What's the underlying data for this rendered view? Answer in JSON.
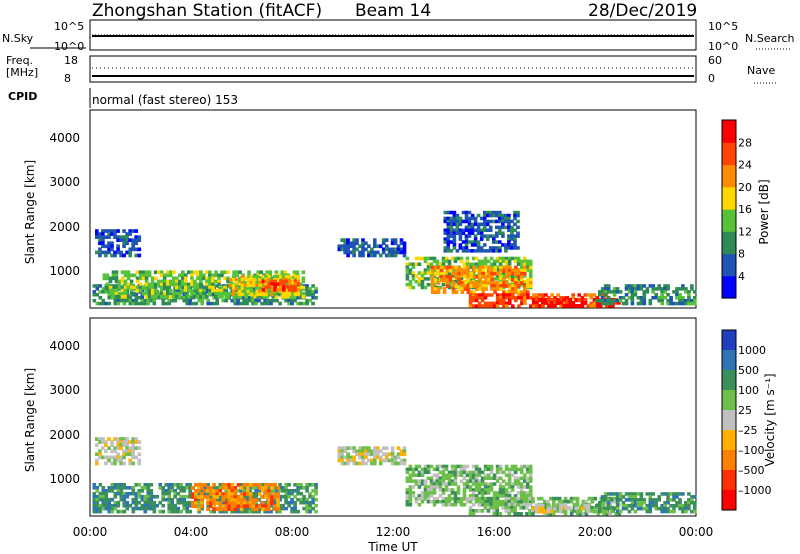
{
  "header": {
    "station": "Zhongshan Station (fitACF)",
    "beam": "Beam 14",
    "date": "28/Dec/2019"
  },
  "noise_panel": {
    "left_label": "N.Sky",
    "right_label": "N.Search",
    "left_ticks": [
      "10^5",
      "10^0"
    ],
    "right_ticks": [
      "10^5",
      "10^0"
    ]
  },
  "freq_panel": {
    "left_label_1": "Freq.",
    "left_label_2": "[MHz]",
    "left_ticks": [
      "18",
      "8"
    ],
    "right_label": "Nave",
    "right_ticks": [
      "60",
      "0"
    ]
  },
  "cpid_panel": {
    "label": "CPID",
    "mode_text": "normal (fast stereo) 153"
  },
  "chart_data": [
    {
      "type": "heatmap",
      "name": "power",
      "ylabel": "Slant Range [km]",
      "ylim": [
        180,
        4500
      ],
      "yticks": [
        "1000",
        "2000",
        "3000",
        "4000"
      ],
      "colorbar_label": "Power [dB]",
      "colorbar_ticks": [
        "4",
        "8",
        "12",
        "16",
        "20",
        "24",
        "28"
      ],
      "colors": [
        "#0000ff",
        "#1f55b4",
        "#2e8b57",
        "#55c23a",
        "#ffd700",
        "#ff8c00",
        "#ff4500",
        "#ff0000"
      ],
      "regions": [
        {
          "t0": 0.1,
          "t1": 9.0,
          "r0": 250,
          "r1": 700,
          "level": 2
        },
        {
          "t0": 0.5,
          "t1": 8.5,
          "r0": 400,
          "r1": 1000,
          "level": 3
        },
        {
          "t0": 5.5,
          "t1": 8.3,
          "r0": 450,
          "r1": 900,
          "level": 4
        },
        {
          "t0": 6.8,
          "t1": 8.3,
          "r0": 550,
          "r1": 800,
          "level": 6
        },
        {
          "t0": 0.2,
          "t1": 2.0,
          "r0": 1300,
          "r1": 1900,
          "level": 1
        },
        {
          "t0": 9.8,
          "t1": 12.5,
          "r0": 1300,
          "r1": 1700,
          "level": 1
        },
        {
          "t0": 12.5,
          "t1": 17.5,
          "r0": 600,
          "r1": 1300,
          "level": 3
        },
        {
          "t0": 13.5,
          "t1": 17.5,
          "r0": 500,
          "r1": 1100,
          "level": 5
        },
        {
          "t0": 15.0,
          "t1": 20.5,
          "r0": 200,
          "r1": 500,
          "level": 6
        },
        {
          "t0": 17.5,
          "t1": 21.0,
          "r0": 200,
          "r1": 400,
          "level": 7
        },
        {
          "t0": 20.0,
          "t1": 24.0,
          "r0": 250,
          "r1": 700,
          "level": 2
        },
        {
          "t0": 14.0,
          "t1": 17.0,
          "r0": 1400,
          "r1": 2300,
          "level": 1
        }
      ]
    },
    {
      "type": "heatmap",
      "name": "velocity",
      "ylabel": "Slant Range [km]",
      "ylim": [
        180,
        4500
      ],
      "yticks": [
        "1000",
        "2000",
        "3000",
        "4000"
      ],
      "xlabel": "Time UT",
      "xticks": [
        "00:00",
        "04:00",
        "08:00",
        "12:00",
        "16:00",
        "20:00",
        "00:00"
      ],
      "colorbar_label": "Velocity [m s⁻¹]",
      "colorbar_ticks": [
        "1000",
        "500",
        "100",
        "25",
        "–25",
        "–100",
        "–500",
        "–1000"
      ],
      "colors": [
        "#1f3fbf",
        "#2f74b5",
        "#3a8f5a",
        "#6cc04a",
        "#c0c0c0",
        "#ffb000",
        "#ff8000",
        "#ff3000",
        "#ff0000"
      ],
      "regions": [
        {
          "t0": 0.1,
          "t1": 9.0,
          "r0": 250,
          "r1": 900,
          "level": 2
        },
        {
          "t0": 4.0,
          "t1": 7.5,
          "r0": 300,
          "r1": 900,
          "level": 6
        },
        {
          "t0": 0.2,
          "t1": 2.0,
          "r0": 1300,
          "r1": 1900,
          "level": 4
        },
        {
          "t0": 9.8,
          "t1": 12.5,
          "r0": 1300,
          "r1": 1700,
          "level": 4
        },
        {
          "t0": 12.5,
          "t1": 17.5,
          "r0": 400,
          "r1": 1300,
          "level": 3
        },
        {
          "t0": 15.0,
          "t1": 21.0,
          "r0": 200,
          "r1": 600,
          "level": 3
        },
        {
          "t0": 17.5,
          "t1": 20.5,
          "r0": 250,
          "r1": 450,
          "level": 4
        },
        {
          "t0": 20.0,
          "t1": 24.0,
          "r0": 250,
          "r1": 700,
          "level": 2
        }
      ]
    }
  ]
}
